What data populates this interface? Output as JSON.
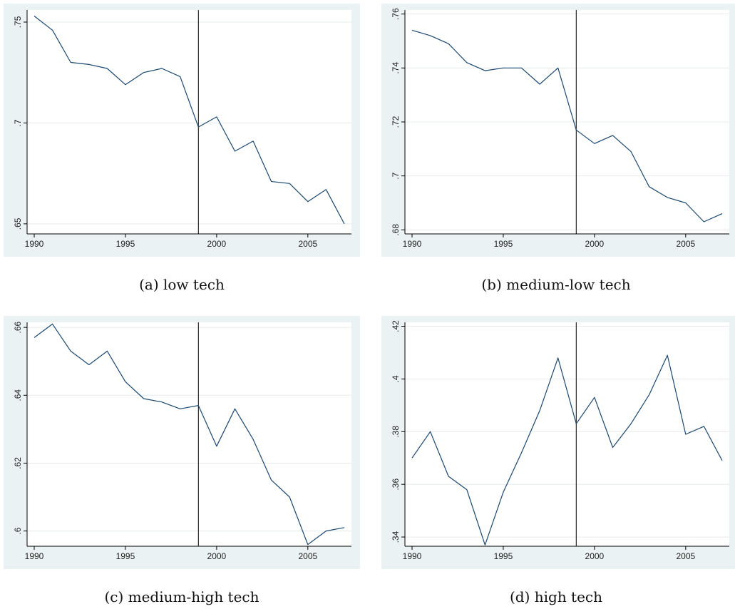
{
  "chart_data": [
    {
      "type": "line",
      "caption": "(a)  low tech",
      "x": [
        1990,
        1991,
        1992,
        1993,
        1994,
        1995,
        1996,
        1997,
        1998,
        1999,
        2000,
        2001,
        2002,
        2003,
        2004,
        2005,
        2006,
        2007
      ],
      "series": [
        {
          "values": [
            0.753,
            0.746,
            0.73,
            0.729,
            0.727,
            0.719,
            0.725,
            0.727,
            0.723,
            0.698,
            0.703,
            0.686,
            0.691,
            0.671,
            0.67,
            0.661,
            0.667,
            0.65
          ]
        }
      ],
      "xticks": [
        1990,
        1995,
        2000,
        2005
      ],
      "yticks": [
        0.65,
        0.7,
        0.75
      ],
      "ytick_labels": [
        ".65",
        ".7",
        ".75"
      ],
      "xlim": [
        1990,
        2007
      ],
      "ylim": [
        0.645,
        0.756
      ],
      "vline": 1999,
      "grid": true
    },
    {
      "type": "line",
      "caption": "(b)  medium-low tech",
      "x": [
        1990,
        1991,
        1992,
        1993,
        1994,
        1995,
        1996,
        1997,
        1998,
        1999,
        2000,
        2001,
        2002,
        2003,
        2004,
        2005,
        2006,
        2007
      ],
      "series": [
        {
          "values": [
            0.754,
            0.752,
            0.749,
            0.742,
            0.739,
            0.74,
            0.74,
            0.734,
            0.74,
            0.717,
            0.712,
            0.715,
            0.709,
            0.696,
            0.692,
            0.69,
            0.683,
            0.686
          ]
        }
      ],
      "xticks": [
        1990,
        1995,
        2000,
        2005
      ],
      "yticks": [
        0.68,
        0.7,
        0.72,
        0.74,
        0.76
      ],
      "ytick_labels": [
        ".68",
        ".7",
        ".72",
        ".74",
        ".76"
      ],
      "xlim": [
        1990,
        2007
      ],
      "ylim": [
        0.6785,
        0.7615
      ],
      "vline": 1999,
      "grid": true
    },
    {
      "type": "line",
      "caption": "(c)  medium-high tech",
      "x": [
        1990,
        1991,
        1992,
        1993,
        1994,
        1995,
        1996,
        1997,
        1998,
        1999,
        2000,
        2001,
        2002,
        2003,
        2004,
        2005,
        2006,
        2007
      ],
      "series": [
        {
          "values": [
            0.657,
            0.661,
            0.653,
            0.649,
            0.653,
            0.644,
            0.639,
            0.638,
            0.636,
            0.637,
            0.625,
            0.636,
            0.627,
            0.615,
            0.61,
            0.596,
            0.6,
            0.601
          ]
        }
      ],
      "xticks": [
        1990,
        1995,
        2000,
        2005
      ],
      "yticks": [
        0.6,
        0.62,
        0.64,
        0.66
      ],
      "ytick_labels": [
        ".6",
        ".62",
        ".64",
        ".66"
      ],
      "xlim": [
        1990,
        2007
      ],
      "ylim": [
        0.5955,
        0.6615
      ],
      "vline": 1999,
      "grid": true
    },
    {
      "type": "line",
      "caption": "(d)  high tech",
      "x": [
        1990,
        1991,
        1992,
        1993,
        1994,
        1995,
        1996,
        1997,
        1998,
        1999,
        2000,
        2001,
        2002,
        2003,
        2004,
        2005,
        2006,
        2007
      ],
      "series": [
        {
          "values": [
            0.37,
            0.38,
            0.363,
            0.358,
            0.337,
            0.357,
            0.372,
            0.388,
            0.408,
            0.383,
            0.393,
            0.374,
            0.383,
            0.394,
            0.409,
            0.379,
            0.382,
            0.369
          ]
        }
      ],
      "xticks": [
        1990,
        1995,
        2000,
        2005
      ],
      "yticks": [
        0.34,
        0.36,
        0.38,
        0.4,
        0.42
      ],
      "ytick_labels": [
        ".34",
        ".36",
        ".38",
        ".4",
        ".42"
      ],
      "xlim": [
        1990,
        2007
      ],
      "ylim": [
        0.3365,
        0.4215
      ],
      "vline": 1999,
      "grid": true
    }
  ],
  "colors": {
    "background": "#eaf2f3",
    "plot": "#ffffff",
    "line": "#1a476f",
    "grid": "#e6ecee",
    "vline": "#000000"
  }
}
